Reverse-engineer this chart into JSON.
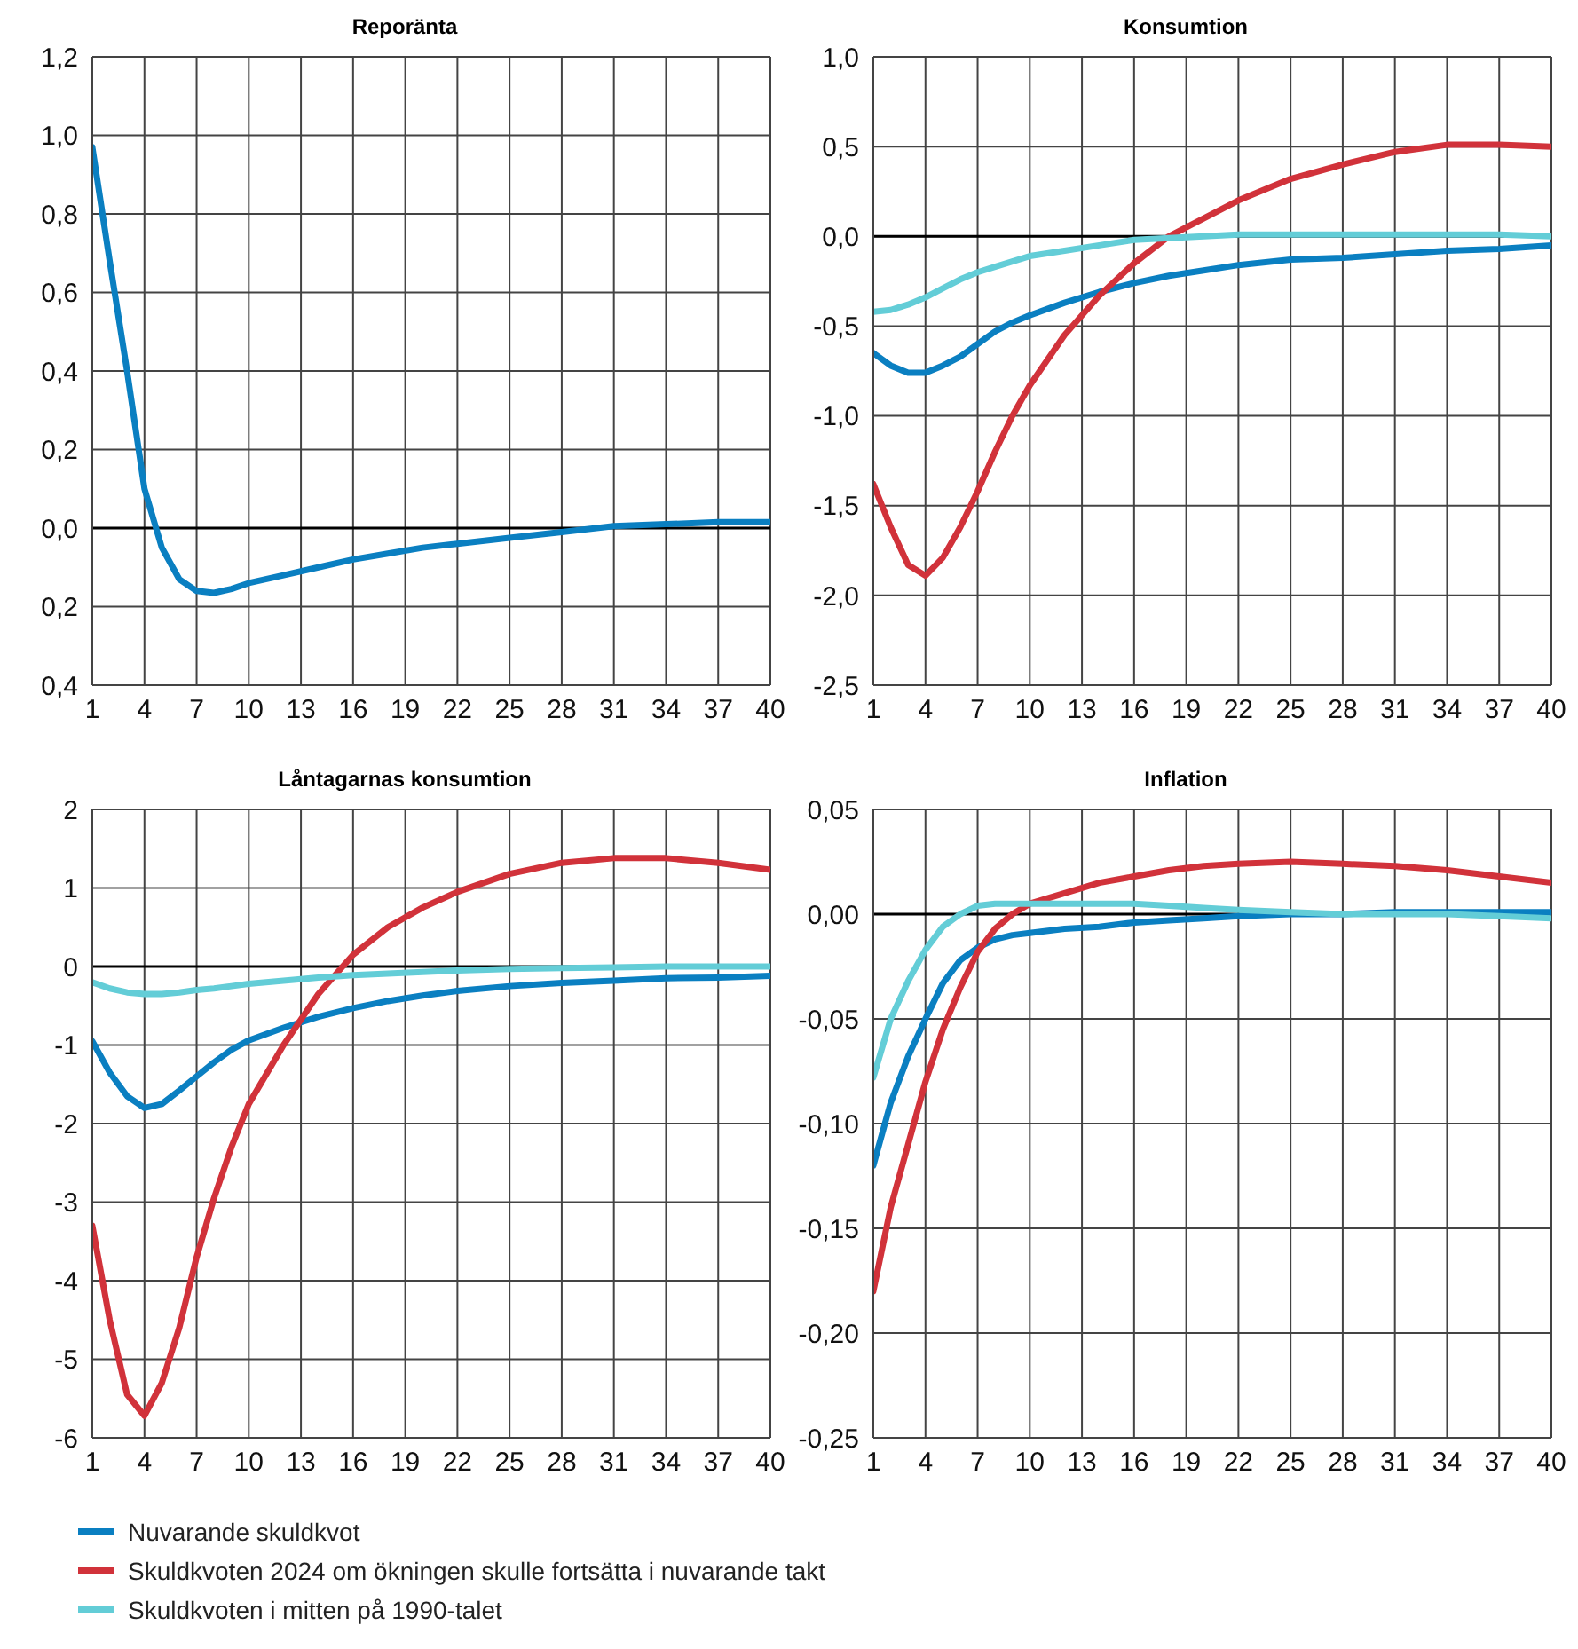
{
  "chart_data": [
    {
      "type": "line",
      "title": "Reporänta",
      "x": [
        1,
        2,
        3,
        4,
        5,
        6,
        7,
        8,
        9,
        10,
        12,
        14,
        16,
        18,
        20,
        22,
        25,
        28,
        31,
        34,
        37,
        40
      ],
      "xlim": [
        1,
        40
      ],
      "xticks": [
        1,
        4,
        7,
        10,
        13,
        16,
        19,
        22,
        25,
        28,
        31,
        34,
        37,
        40
      ],
      "ylim": [
        -0.4,
        1.2
      ],
      "yticks": [
        {
          "value": -0.4,
          "label": "0,4"
        },
        {
          "value": -0.2,
          "label": "0,2"
        },
        {
          "value": 0,
          "label": "0,0"
        },
        {
          "value": 0.2,
          "label": "0,2"
        },
        {
          "value": 0.4,
          "label": "0,4"
        },
        {
          "value": 0.6,
          "label": "0,6"
        },
        {
          "value": 0.8,
          "label": "0,8"
        },
        {
          "value": 1.0,
          "label": "1,0"
        },
        {
          "value": 1.2,
          "label": "1,2"
        }
      ],
      "grid": true,
      "ref_lines": [
        {
          "axis": "y",
          "value": 0,
          "color": "#000000"
        }
      ],
      "series": [
        {
          "color": "#0a7fc1",
          "values": [
            0.97,
            0.68,
            0.4,
            0.1,
            -0.05,
            -0.13,
            -0.16,
            -0.165,
            -0.155,
            -0.14,
            -0.12,
            -0.1,
            -0.08,
            -0.065,
            -0.05,
            -0.04,
            -0.025,
            -0.01,
            0.005,
            0.01,
            0.015,
            0.015
          ]
        }
      ]
    },
    {
      "type": "line",
      "title": "Konsumtion",
      "x": [
        1,
        2,
        3,
        4,
        5,
        6,
        7,
        8,
        9,
        10,
        12,
        14,
        16,
        18,
        20,
        22,
        25,
        28,
        31,
        34,
        37,
        40
      ],
      "xlim": [
        1,
        40
      ],
      "xticks": [
        1,
        4,
        7,
        10,
        13,
        16,
        19,
        22,
        25,
        28,
        31,
        34,
        37,
        40
      ],
      "ylim": [
        -2.5,
        1.0
      ],
      "yticks": [
        {
          "value": -2.5,
          "label": "-2,5"
        },
        {
          "value": -2.0,
          "label": "-2,0"
        },
        {
          "value": -1.5,
          "label": "-1,5"
        },
        {
          "value": -1.0,
          "label": "-1,0"
        },
        {
          "value": -0.5,
          "label": "-0,5"
        },
        {
          "value": 0,
          "label": "0,0"
        },
        {
          "value": 0.5,
          "label": "0,5"
        },
        {
          "value": 1.0,
          "label": "1,0"
        }
      ],
      "grid": true,
      "ref_lines": [
        {
          "axis": "y",
          "value": 0,
          "color": "#000000"
        }
      ],
      "series": [
        {
          "color": "#0a7fc1",
          "values": [
            -0.65,
            -0.72,
            -0.76,
            -0.76,
            -0.72,
            -0.67,
            -0.6,
            -0.53,
            -0.48,
            -0.44,
            -0.37,
            -0.31,
            -0.26,
            -0.22,
            -0.19,
            -0.16,
            -0.13,
            -0.12,
            -0.1,
            -0.08,
            -0.07,
            -0.05
          ]
        },
        {
          "color": "#d1323a",
          "values": [
            -1.38,
            -1.62,
            -1.83,
            -1.89,
            -1.79,
            -1.62,
            -1.42,
            -1.2,
            -1.0,
            -0.83,
            -0.55,
            -0.33,
            -0.15,
            0.0,
            0.1,
            0.2,
            0.32,
            0.4,
            0.47,
            0.51,
            0.51,
            0.5
          ]
        },
        {
          "color": "#63cdd7",
          "values": [
            -0.42,
            -0.41,
            -0.38,
            -0.34,
            -0.29,
            -0.24,
            -0.2,
            -0.17,
            -0.14,
            -0.11,
            -0.08,
            -0.05,
            -0.02,
            -0.01,
            0.0,
            0.01,
            0.01,
            0.01,
            0.01,
            0.01,
            0.01,
            0.0
          ]
        }
      ]
    },
    {
      "type": "line",
      "title": "Låntagarnas konsumtion",
      "x": [
        1,
        2,
        3,
        4,
        5,
        6,
        7,
        8,
        9,
        10,
        12,
        14,
        16,
        18,
        20,
        22,
        25,
        28,
        31,
        34,
        37,
        40
      ],
      "xlim": [
        1,
        40
      ],
      "xticks": [
        1,
        4,
        7,
        10,
        13,
        16,
        19,
        22,
        25,
        28,
        31,
        34,
        37,
        40
      ],
      "ylim": [
        -6,
        2
      ],
      "yticks": [
        -6,
        -5,
        -4,
        -3,
        -2,
        -1,
        0,
        1,
        2
      ],
      "grid": true,
      "ref_lines": [
        {
          "axis": "y",
          "value": 0,
          "color": "#000000"
        }
      ],
      "series": [
        {
          "color": "#0a7fc1",
          "values": [
            -0.95,
            -1.35,
            -1.65,
            -1.8,
            -1.75,
            -1.58,
            -1.4,
            -1.22,
            -1.06,
            -0.94,
            -0.78,
            -0.64,
            -0.53,
            -0.44,
            -0.37,
            -0.31,
            -0.25,
            -0.21,
            -0.18,
            -0.15,
            -0.14,
            -0.12
          ]
        },
        {
          "color": "#d1323a",
          "values": [
            -3.3,
            -4.5,
            -5.45,
            -5.72,
            -5.3,
            -4.6,
            -3.7,
            -2.95,
            -2.3,
            -1.75,
            -1.0,
            -0.35,
            0.15,
            0.5,
            0.75,
            0.95,
            1.18,
            1.32,
            1.38,
            1.38,
            1.32,
            1.23
          ]
        },
        {
          "color": "#63cdd7",
          "values": [
            -0.2,
            -0.28,
            -0.33,
            -0.35,
            -0.35,
            -0.33,
            -0.3,
            -0.28,
            -0.25,
            -0.22,
            -0.18,
            -0.14,
            -0.11,
            -0.09,
            -0.07,
            -0.05,
            -0.03,
            -0.02,
            -0.01,
            0.0,
            0.0,
            0.0
          ]
        }
      ]
    },
    {
      "type": "line",
      "title": "Inflation",
      "x": [
        1,
        2,
        3,
        4,
        5,
        6,
        7,
        8,
        9,
        10,
        12,
        14,
        16,
        18,
        20,
        22,
        25,
        28,
        31,
        34,
        37,
        40
      ],
      "xlim": [
        1,
        40
      ],
      "xticks": [
        1,
        4,
        7,
        10,
        13,
        16,
        19,
        22,
        25,
        28,
        31,
        34,
        37,
        40
      ],
      "ylim": [
        -0.25,
        0.05
      ],
      "yticks": [
        {
          "value": -0.25,
          "label": "-0,25"
        },
        {
          "value": -0.2,
          "label": "-0,20"
        },
        {
          "value": -0.15,
          "label": "-0,15"
        },
        {
          "value": -0.1,
          "label": "-0,10"
        },
        {
          "value": -0.05,
          "label": "-0,05"
        },
        {
          "value": 0,
          "label": "0,00"
        },
        {
          "value": 0.05,
          "label": "0,05"
        }
      ],
      "grid": true,
      "legend": "bottom",
      "ref_lines": [
        {
          "axis": "y",
          "value": 0,
          "color": "#000000"
        }
      ],
      "series": [
        {
          "name": "Nuvarande skuldkvot",
          "color": "#0a7fc1",
          "values": [
            -0.12,
            -0.09,
            -0.068,
            -0.05,
            -0.033,
            -0.022,
            -0.016,
            -0.012,
            -0.01,
            -0.009,
            -0.007,
            -0.006,
            -0.004,
            -0.003,
            -0.002,
            -0.001,
            0.0,
            0.0,
            0.001,
            0.001,
            0.001,
            0.001
          ]
        },
        {
          "name": "Skuldkvoten 2024 om ökningen skulle fortsätta i nuvarande takt",
          "color": "#d1323a",
          "values": [
            -0.18,
            -0.14,
            -0.11,
            -0.08,
            -0.055,
            -0.035,
            -0.018,
            -0.007,
            0.0,
            0.005,
            0.01,
            0.015,
            0.018,
            0.021,
            0.023,
            0.024,
            0.025,
            0.024,
            0.023,
            0.021,
            0.018,
            0.015
          ]
        },
        {
          "name": "Skuldkvoten i mitten på 1990-talet",
          "color": "#63cdd7",
          "values": [
            -0.078,
            -0.05,
            -0.032,
            -0.017,
            -0.006,
            0.0,
            0.004,
            0.005,
            0.005,
            0.005,
            0.005,
            0.005,
            0.005,
            0.004,
            0.003,
            0.002,
            0.001,
            0.0,
            0.0,
            0.0,
            -0.001,
            -0.002
          ]
        }
      ]
    }
  ]
}
